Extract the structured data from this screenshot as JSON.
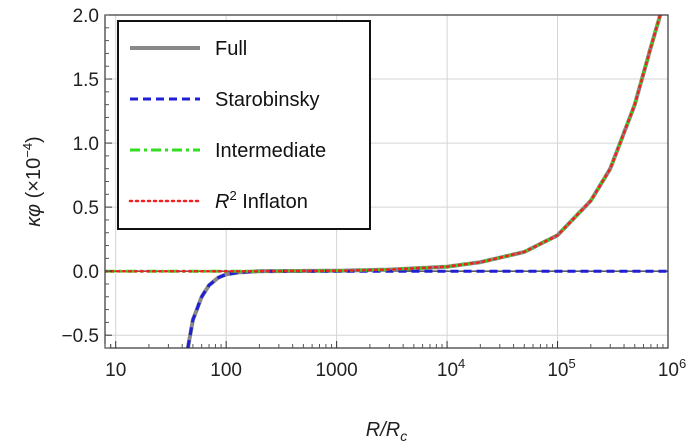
{
  "chart_data": {
    "type": "line",
    "title": "",
    "xlabel": "R/R_c",
    "ylabel": "κφ (×10⁻⁴)",
    "x_scale": "log",
    "xlim": [
      8,
      1000000
    ],
    "ylim": [
      -0.6,
      2.0
    ],
    "grid": true,
    "legend_position": "top-left",
    "x_ticks": [
      {
        "value": 10,
        "label": "10"
      },
      {
        "value": 100,
        "label": "100"
      },
      {
        "value": 1000,
        "label": "1000"
      },
      {
        "value": 10000,
        "label": "10",
        "exp": "4"
      },
      {
        "value": 100000,
        "label": "10",
        "exp": "5"
      },
      {
        "value": 1000000,
        "label": "10",
        "exp": "6"
      }
    ],
    "y_ticks": [
      {
        "value": 2.0,
        "label": "2.0"
      },
      {
        "value": 1.5,
        "label": "1.5"
      },
      {
        "value": 1.0,
        "label": "1.0"
      },
      {
        "value": 0.5,
        "label": "0.5"
      },
      {
        "value": 0.0,
        "label": "0.0"
      },
      {
        "value": -0.5,
        "label": "−0.5"
      }
    ],
    "series": [
      {
        "name": "Full",
        "color": "#888888",
        "dash": "solid",
        "points": [
          [
            45,
            -0.6
          ],
          [
            50,
            -0.38
          ],
          [
            60,
            -0.2
          ],
          [
            70,
            -0.11
          ],
          [
            85,
            -0.05
          ],
          [
            100,
            -0.025
          ],
          [
            130,
            -0.01
          ],
          [
            200,
            0.0
          ],
          [
            1000,
            0.003
          ],
          [
            3000,
            0.012
          ],
          [
            10000,
            0.035
          ],
          [
            20000,
            0.07
          ],
          [
            50000,
            0.15
          ],
          [
            100000,
            0.28
          ],
          [
            200000,
            0.55
          ],
          [
            300000,
            0.8
          ],
          [
            500000,
            1.3
          ],
          [
            700000,
            1.75
          ],
          [
            850000,
            2.0
          ]
        ]
      },
      {
        "name": "Starobinsky",
        "color": "#1f1fd6",
        "dash": "dash",
        "points": [
          [
            45,
            -0.6
          ],
          [
            50,
            -0.38
          ],
          [
            60,
            -0.2
          ],
          [
            70,
            -0.11
          ],
          [
            85,
            -0.05
          ],
          [
            100,
            -0.025
          ],
          [
            130,
            -0.01
          ],
          [
            200,
            0.0
          ],
          [
            1000,
            0.0
          ],
          [
            10000,
            0.0
          ],
          [
            100000,
            0.0
          ],
          [
            1000000,
            0.0
          ]
        ]
      },
      {
        "name": "Intermediate",
        "color": "#33dd22",
        "dash": "dashdot",
        "points": [
          [
            8,
            0.0
          ],
          [
            200,
            0.0
          ],
          [
            1000,
            0.003
          ],
          [
            3000,
            0.012
          ],
          [
            10000,
            0.035
          ],
          [
            20000,
            0.07
          ],
          [
            50000,
            0.15
          ],
          [
            100000,
            0.28
          ],
          [
            200000,
            0.55
          ],
          [
            300000,
            0.8
          ],
          [
            500000,
            1.3
          ],
          [
            700000,
            1.75
          ],
          [
            850000,
            2.0
          ]
        ]
      },
      {
        "name": "R² Inflaton",
        "name_main": "R",
        "name_sup": "2",
        "name_rest": "Inflaton",
        "color": "#ee2222",
        "dash": "dot",
        "points": [
          [
            8,
            0.0
          ],
          [
            200,
            0.0
          ],
          [
            1000,
            0.003
          ],
          [
            3000,
            0.012
          ],
          [
            10000,
            0.035
          ],
          [
            20000,
            0.07
          ],
          [
            50000,
            0.15
          ],
          [
            100000,
            0.28
          ],
          [
            200000,
            0.55
          ],
          [
            300000,
            0.8
          ],
          [
            500000,
            1.3
          ],
          [
            700000,
            1.75
          ],
          [
            850000,
            2.0
          ]
        ]
      }
    ]
  }
}
